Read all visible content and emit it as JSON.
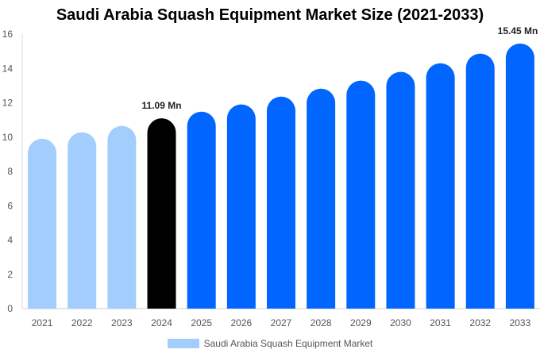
{
  "chart_data": {
    "type": "bar",
    "title": "Saudi Arabia Squash Equipment Market Size (2021-2033)",
    "categories": [
      "2021",
      "2022",
      "2023",
      "2024",
      "2025",
      "2026",
      "2027",
      "2028",
      "2029",
      "2030",
      "2031",
      "2032",
      "2033"
    ],
    "series": [
      {
        "name": "Saudi Arabia Squash Equipment Market",
        "values": [
          9.9,
          10.28,
          10.65,
          11.09,
          11.48,
          11.9,
          12.36,
          12.82,
          13.29,
          13.8,
          14.3,
          14.86,
          15.45
        ]
      }
    ],
    "data_labels": [
      {
        "category": "2024",
        "text": "11.09 Mn"
      },
      {
        "category": "2033",
        "text": "15.45 Mn"
      }
    ],
    "xlabel": "",
    "ylabel": "",
    "ylim": [
      0,
      16
    ],
    "yticks": [
      0,
      2,
      4,
      6,
      8,
      10,
      12,
      14,
      16
    ],
    "grid": false,
    "legend_position": "bottom",
    "colors": {
      "historical": "#a3cdfd",
      "base_year": "#000000",
      "forecast": "#0066ff"
    },
    "color_by_category": [
      "historical",
      "historical",
      "historical",
      "base_year",
      "forecast",
      "forecast",
      "forecast",
      "forecast",
      "forecast",
      "forecast",
      "forecast",
      "forecast",
      "forecast"
    ]
  }
}
